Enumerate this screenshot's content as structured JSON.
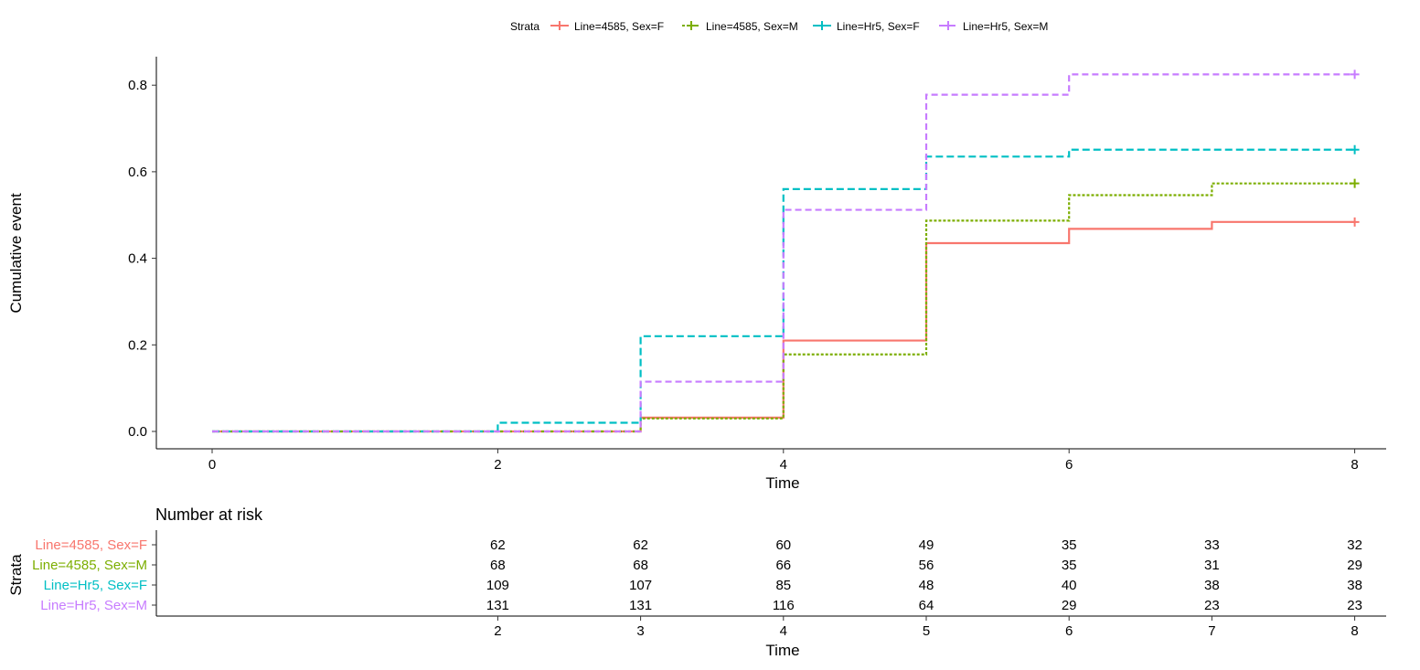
{
  "chart_data": [
    {
      "type": "line",
      "subtype": "step",
      "xlabel": "Time",
      "ylabel": "Cumulative event",
      "xlim": [
        0,
        8
      ],
      "ylim": [
        0,
        0.85
      ],
      "x_ticks": [
        0,
        2,
        4,
        6,
        8
      ],
      "y_ticks": [
        0.0,
        0.2,
        0.4,
        0.6,
        0.8
      ],
      "y_tick_labels": [
        "0.0",
        "0.2",
        "0.4",
        "0.6",
        "0.8"
      ],
      "grid": false,
      "legend": {
        "title": "Strata",
        "position": "top"
      },
      "series": [
        {
          "name": "Line=4585, Sex=F",
          "color": "#F8766D",
          "linetype": "solid",
          "x": [
            0,
            3,
            4,
            5,
            6,
            7,
            8
          ],
          "y": [
            0.0,
            0.032,
            0.21,
            0.435,
            0.468,
            0.484,
            0.484
          ]
        },
        {
          "name": "Line=4585, Sex=M",
          "color": "#7CAE00",
          "linetype": "dotted",
          "x": [
            0,
            3,
            4,
            5,
            6,
            7,
            8
          ],
          "y": [
            0.0,
            0.03,
            0.178,
            0.487,
            0.546,
            0.573,
            0.573
          ]
        },
        {
          "name": "Line=Hr5, Sex=F",
          "color": "#00BFC4",
          "linetype": "dashed",
          "x": [
            0,
            2,
            3,
            4,
            5,
            6,
            8
          ],
          "y": [
            0.0,
            0.02,
            0.22,
            0.56,
            0.635,
            0.651,
            0.651
          ]
        },
        {
          "name": "Line=Hr5, Sex=M",
          "color": "#C77CFF",
          "linetype": "longdash",
          "x": [
            0,
            3,
            4,
            5,
            6,
            8
          ],
          "y": [
            0.0,
            0.115,
            0.512,
            0.778,
            0.825,
            0.825
          ]
        }
      ]
    },
    {
      "type": "table",
      "title": "Number at risk",
      "xlabel": "Time",
      "ylabel": "Strata",
      "columns": [
        2,
        3,
        4,
        5,
        6,
        7,
        8
      ],
      "rows": [
        {
          "name": "Line=4585, Sex=F",
          "color": "#F8766D",
          "values": [
            62,
            62,
            60,
            49,
            35,
            33,
            32
          ]
        },
        {
          "name": "Line=4585, Sex=M",
          "color": "#7CAE00",
          "values": [
            68,
            68,
            66,
            56,
            35,
            31,
            29
          ]
        },
        {
          "name": "Line=Hr5, Sex=F",
          "color": "#00BFC4",
          "values": [
            109,
            107,
            85,
            48,
            40,
            38,
            38
          ]
        },
        {
          "name": "Line=Hr5, Sex=M",
          "color": "#C77CFF",
          "values": [
            131,
            131,
            116,
            64,
            29,
            23,
            23
          ]
        }
      ]
    }
  ]
}
